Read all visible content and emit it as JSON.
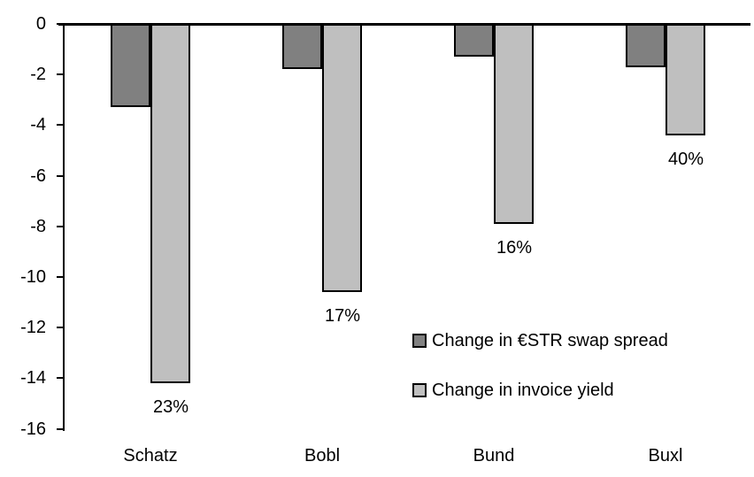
{
  "chart_data": {
    "type": "bar",
    "title": "",
    "xlabel": "",
    "ylabel": "",
    "categories": [
      "Schatz",
      "Bobl",
      "Bund",
      "Buxl"
    ],
    "series": [
      {
        "name": "Change in €STR swap spread",
        "key": "swap-spread",
        "color": "#808080",
        "values": [
          -3.3,
          -1.8,
          -1.3,
          -1.7
        ]
      },
      {
        "name": "Change in invoice yield",
        "key": "invoice-yield",
        "color": "#BFBFBF",
        "values": [
          -14.2,
          -10.6,
          -7.9,
          -4.4
        ],
        "point_labels": [
          "23%",
          "17%",
          "16%",
          "40%"
        ]
      }
    ],
    "ylim": [
      -16,
      0
    ],
    "yticks": [
      0,
      -2,
      -4,
      -6,
      -8,
      -10,
      -12,
      -14,
      -16
    ],
    "grid": false,
    "legend_position": "inside-right",
    "axis_color": "#000000",
    "background": "#FFFFFF"
  }
}
